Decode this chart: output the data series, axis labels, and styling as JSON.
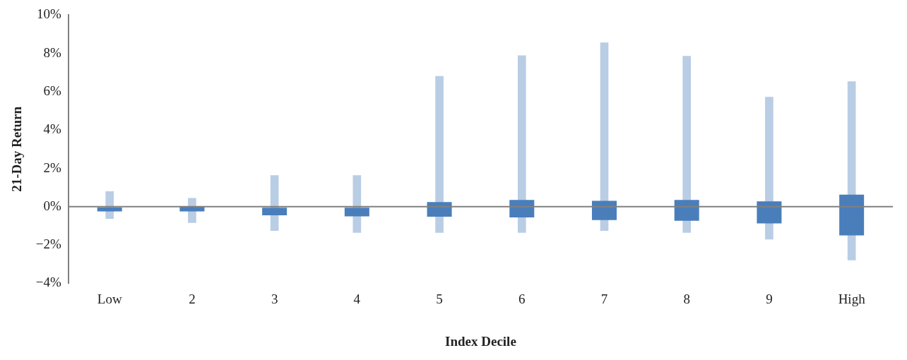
{
  "chart_data": {
    "type": "bar",
    "xlabel": "Index Decile",
    "ylabel": "21-Day Return",
    "categories": [
      "Low",
      "2",
      "3",
      "4",
      "5",
      "6",
      "7",
      "8",
      "9",
      "High"
    ],
    "series": [
      {
        "color": "#b9cde5",
        "base": [
          -0.63,
          -0.84,
          -1.26,
          -1.36,
          -1.36,
          -1.36,
          -1.26,
          -1.36,
          -1.71,
          -2.8
        ],
        "values": [
          1.43,
          1.29,
          2.9,
          3.0,
          8.18,
          9.26,
          9.83,
          9.23,
          7.44,
          9.34
        ]
      },
      {
        "color": "#4a7ebb",
        "base": [
          -0.25,
          -0.25,
          -0.45,
          -0.5,
          -0.52,
          -0.56,
          -0.7,
          -0.73,
          -0.87,
          -1.5
        ],
        "values": [
          0.21,
          0.25,
          0.4,
          0.45,
          0.76,
          0.91,
          1.01,
          1.08,
          1.15,
          2.13
        ]
      }
    ],
    "ylim": [
      -4,
      10
    ],
    "yticks": [
      {
        "value": -4,
        "label": "−4%"
      },
      {
        "value": -2,
        "label": "−2%"
      },
      {
        "value": 0,
        "label": "0%"
      },
      {
        "value": 2,
        "label": "2%"
      },
      {
        "value": 4,
        "label": "4%"
      },
      {
        "value": 6,
        "label": "6%"
      },
      {
        "value": 8,
        "label": "8%"
      },
      {
        "value": 10,
        "label": "10%"
      }
    ],
    "ref_lines": [
      {
        "axis": "y",
        "value": 0,
        "color": "#808080"
      }
    ],
    "grid": false,
    "legend": false
  }
}
